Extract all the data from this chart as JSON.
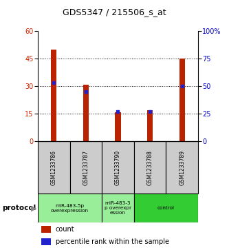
{
  "title": "GDS5347 / 215506_s_at",
  "samples": [
    "GSM1233786",
    "GSM1233787",
    "GSM1233790",
    "GSM1233788",
    "GSM1233789"
  ],
  "count_values": [
    50,
    31,
    16,
    17,
    45
  ],
  "percentile_values": [
    53,
    45,
    27,
    27,
    50
  ],
  "left_ylim": [
    0,
    60
  ],
  "right_ylim": [
    0,
    100
  ],
  "left_yticks": [
    0,
    15,
    30,
    45,
    60
  ],
  "right_yticks": [
    0,
    25,
    50,
    75,
    100
  ],
  "bar_color": "#bb2200",
  "dot_color": "#2222cc",
  "grid_values": [
    15,
    30,
    45
  ],
  "group_defs": [
    {
      "label": "miR-483-5p\noverexpression",
      "start": 0,
      "end": 1,
      "color": "#99ee99"
    },
    {
      "label": "miR-483-3\np overexpr\nession",
      "start": 2,
      "end": 2,
      "color": "#99ee99"
    },
    {
      "label": "control",
      "start": 3,
      "end": 4,
      "color": "#33cc33"
    }
  ],
  "legend_count_label": "count",
  "legend_percentile_label": "percentile rank within the sample",
  "protocol_label": "protocol",
  "bg_color": "#ffffff",
  "sample_cell_color": "#cccccc",
  "tick_color_left": "#cc2200",
  "tick_color_right": "#0000cc",
  "bar_width": 0.18
}
